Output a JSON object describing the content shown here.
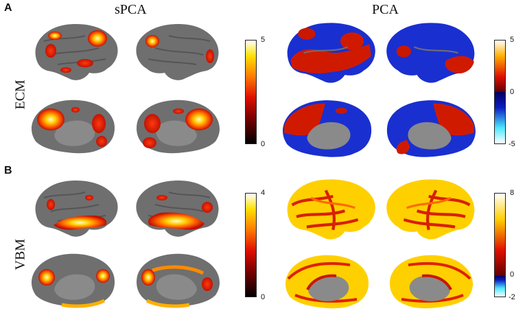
{
  "panel_letters": {
    "a": "A",
    "b": "B"
  },
  "columns": {
    "left": "sPCA",
    "right": "PCA"
  },
  "rows": {
    "top": "ECM",
    "bottom": "VBM"
  },
  "colorbars": {
    "a_spca": {
      "max": "5",
      "min": "0",
      "colormap": "hot",
      "colors": [
        "#000000",
        "#8b0000",
        "#ff2000",
        "#ff8c00",
        "#ffee00",
        "#ffffff"
      ]
    },
    "a_pca": {
      "max": "5",
      "zero": "0",
      "min": "-5",
      "colormap": "hot-cold"
    },
    "b_spca": {
      "max": "4",
      "min": "0",
      "colormap": "hot"
    },
    "b_pca": {
      "max": "8",
      "zero": "0",
      "min": "-2",
      "colormap": "hot-cold"
    }
  },
  "colors": {
    "cortex": "#6f6f6f",
    "cortex_dark": "#555555",
    "midline": "#8a8a8a",
    "hot_red": "#e02000",
    "hot_orange": "#ff8a00",
    "hot_yellow": "#ffe84a",
    "cold_blue": "#1a2fd0"
  }
}
